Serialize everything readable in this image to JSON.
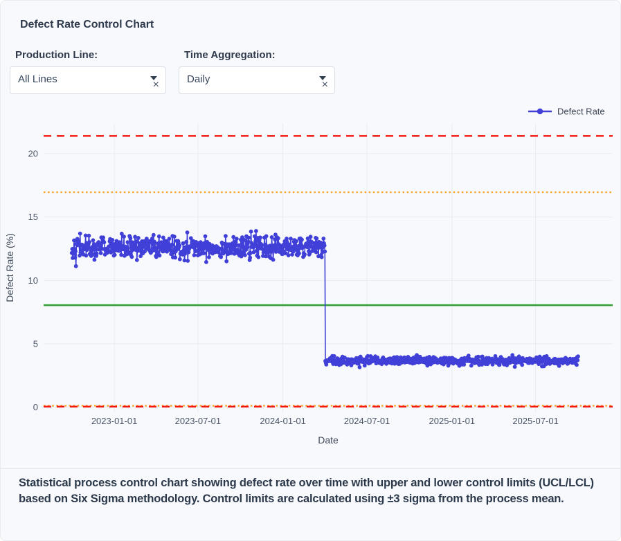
{
  "header": {
    "title": "Defect Rate Control Chart"
  },
  "filters": {
    "production_line": {
      "label": "Production Line:",
      "value": "All Lines"
    },
    "time_aggregation": {
      "label": "Time Aggregation:",
      "value": "Daily"
    },
    "clear_icon": "×"
  },
  "chart_data": {
    "type": "line",
    "title": "",
    "xlabel": "Date",
    "ylabel": "Defect Rate (%)",
    "x_range": [
      "2022-08-01",
      "2025-12-15"
    ],
    "ylim": [
      -0.4,
      22.4
    ],
    "y_ticks": [
      0,
      5,
      10,
      15,
      20
    ],
    "x_ticks": [
      "2023-01-01",
      "2023-07-01",
      "2024-01-01",
      "2024-07-01",
      "2025-01-01",
      "2025-07-01"
    ],
    "grid": true,
    "legend": {
      "position": "top-right",
      "entries": [
        {
          "label": "Defect Rate",
          "color": "#4040d8",
          "marker": "line-dot"
        }
      ]
    },
    "series": [
      {
        "name": "Defect Rate",
        "color": "#4040d8",
        "sampling": "daily",
        "start": "2022-10-01",
        "end": "2025-10-01",
        "noise_seed": 42,
        "segments": [
          {
            "from": "2022-10-01",
            "to": "2024-04-01",
            "mean": 12.6,
            "sd": 0.45
          },
          {
            "from": "2024-04-02",
            "to": "2025-10-01",
            "mean": 3.65,
            "sd": 0.17
          }
        ]
      }
    ],
    "control_lines": [
      {
        "name": "upper_warning",
        "value": 16.95,
        "color": "#f7a328",
        "style": "dotted"
      },
      {
        "name": "lower_warning",
        "value": 0.12,
        "color": "#f7a328",
        "style": "dotted"
      },
      {
        "name": "process_mean",
        "value": 8.05,
        "color": "#2e9e2e",
        "style": "solid"
      },
      {
        "name": "ucl",
        "value": 21.4,
        "color": "#f21711",
        "style": "dashed"
      },
      {
        "name": "lcl",
        "value": 0.05,
        "color": "#f21711",
        "style": "dashed"
      }
    ],
    "axis_text_color": "#4a5466",
    "grid_color": "#e8ebf0"
  },
  "caption": {
    "text": "Statistical process control chart showing defect rate over time with upper and lower control limits (UCL/LCL) based on Six Sigma methodology. Control limits are calculated using ±3 sigma from the process mean."
  }
}
